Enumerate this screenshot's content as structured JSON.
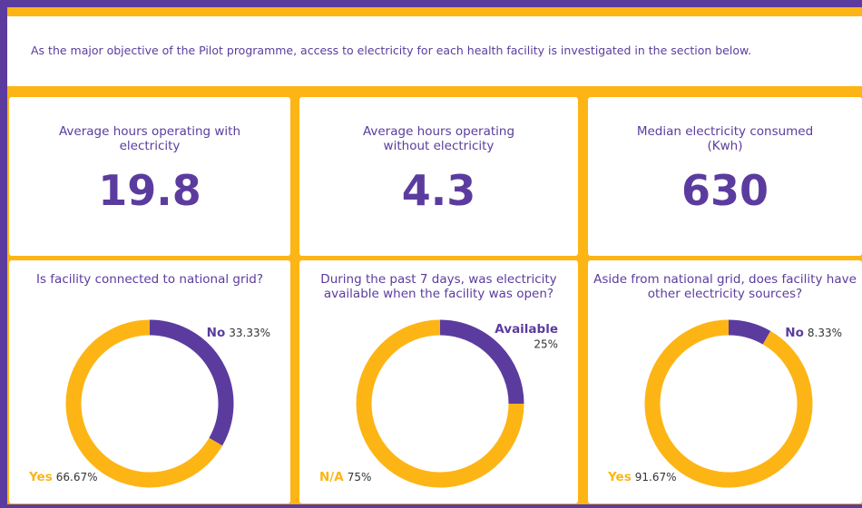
{
  "intro": "As the major objective of the Pilot programme, access to electricity for each health facility is investigated in the section below.",
  "kpis": [
    {
      "label": "Average hours operating with electricity",
      "value": 19.8
    },
    {
      "label": "Average hours operating without electricity",
      "value": 4.3
    },
    {
      "label": "Median electricity consumed (Kwh)",
      "value": 630
    }
  ],
  "chart_data": [
    {
      "type": "pie",
      "title": "Is facility connected to national grid?",
      "categories": [
        "No",
        "Yes"
      ],
      "values": [
        33.33,
        66.67
      ],
      "value_labels": [
        "33.33%",
        "66.67%"
      ],
      "colors": [
        "#5b3c9e",
        "#fdb515"
      ]
    },
    {
      "type": "pie",
      "title": "During the past 7 days, was electricity available when the facility was open?",
      "categories": [
        "Available",
        "N/A"
      ],
      "values": [
        25,
        75
      ],
      "value_labels": [
        "25%",
        "75%"
      ],
      "colors": [
        "#5b3c9e",
        "#fdb515"
      ]
    },
    {
      "type": "pie",
      "title": "Aside from national grid, does facility have other electricity sources?",
      "categories": [
        "No",
        "Yes"
      ],
      "values": [
        8.33,
        91.67
      ],
      "value_labels": [
        "8.33%",
        "91.67%"
      ],
      "colors": [
        "#5b3c9e",
        "#fdb515"
      ]
    }
  ]
}
